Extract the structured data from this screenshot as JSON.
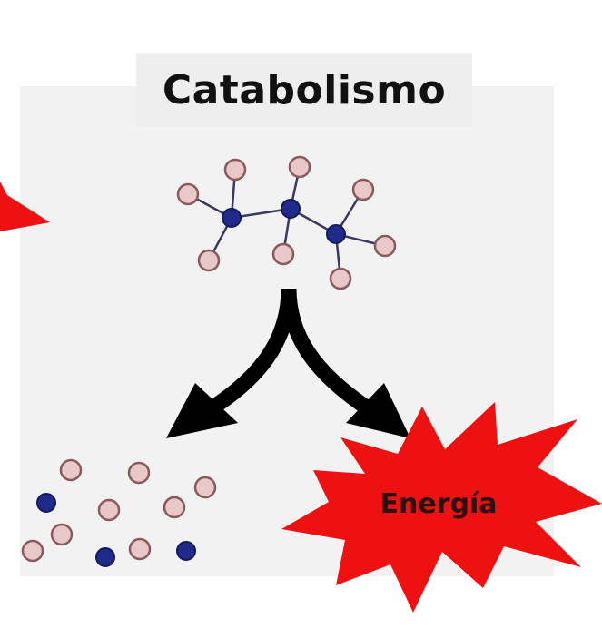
{
  "title": "Catabolismo",
  "energy_label": "Energía",
  "colors": {
    "panel": "#f2f2f2",
    "burst": "#ee1111",
    "atom_h": "#e8c8c8",
    "atom_c": "#1f2a8a",
    "arrow": "#000000"
  },
  "molecule": {
    "carbon_atoms": 3,
    "hydrogen_atoms": 8
  },
  "products": {
    "light_atoms": 10,
    "dark_atoms": 3
  }
}
